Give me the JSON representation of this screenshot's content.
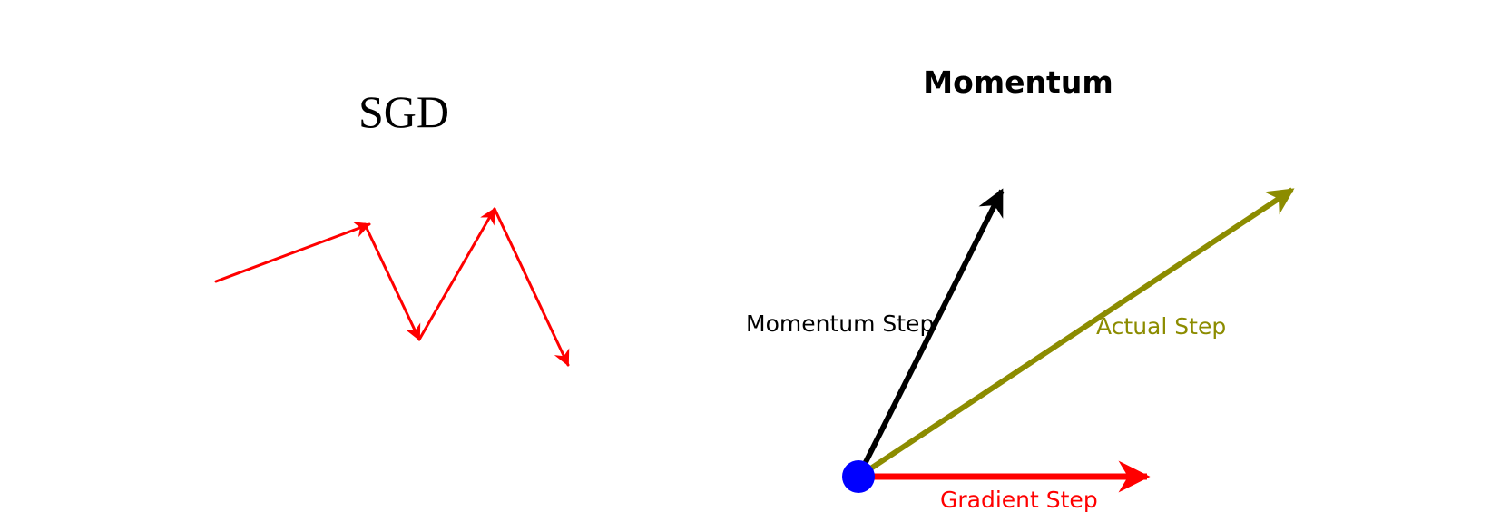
{
  "panels": {
    "sgd": {
      "title": "SGD",
      "color": "#ff0000"
    },
    "momentum": {
      "title": "Momentum",
      "origin_color": "#0000ff",
      "vectors": {
        "momentum": {
          "label": "Momentum Step",
          "color": "#000000",
          "label_color": "#000000"
        },
        "actual": {
          "label": "Actual Step",
          "color": "#8c8c00",
          "label_color": "#8c8c00"
        },
        "gradient": {
          "label": "Gradient Step",
          "color": "#ff0000",
          "label_color": "#ff0000"
        }
      }
    }
  }
}
